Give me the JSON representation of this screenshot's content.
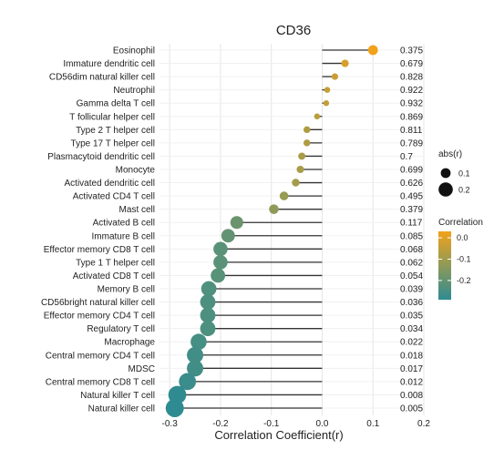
{
  "chart_data": {
    "type": "lollipop",
    "title": "CD36",
    "xlabel": "Correlation Coefficient(r)",
    "xlim": [
      -0.32,
      0.2
    ],
    "xticks": [
      -0.3,
      -0.2,
      -0.1,
      0.0,
      0.1,
      0.2
    ],
    "xtick_labels": [
      "-0.3",
      "-0.2",
      "-0.1",
      "0.0",
      "0.1",
      "0.2"
    ],
    "grid": true,
    "size_legend": {
      "title": "abs(r)",
      "entries": [
        {
          "label": "0.1",
          "value": 0.1
        },
        {
          "label": "0.2",
          "value": 0.2
        }
      ]
    },
    "color_legend": {
      "title": "Correlation",
      "ticks": [
        {
          "label": "0.0",
          "value": 0.0
        },
        {
          "label": "-0.1",
          "value": -0.1
        },
        {
          "label": "-0.2",
          "value": -0.2
        }
      ],
      "low_color": "#2e8b92",
      "high_color": "#f2a11a"
    },
    "categories": [
      "Eosinophil",
      "Immature dendritic cell",
      "CD56dim natural killer cell",
      "Neutrophil",
      "Gamma delta T cell",
      "T follicular helper cell",
      "Type 2 T helper cell",
      "Type 17 T helper cell",
      "Plasmacytoid dendritic cell",
      "Monocyte",
      "Activated dendritic cell",
      "Activated CD4 T cell",
      "Mast cell",
      "Activated B cell",
      "Immature  B cell",
      "Effector memory CD8 T cell",
      "Type 1 T helper cell",
      "Activated CD8 T cell",
      "Memory B cell",
      "CD56bright natural killer cell",
      "Effector memory CD4 T cell",
      "Regulatory T cell",
      "Macrophage",
      "Central memory CD4 T cell",
      "MDSC",
      "Central memory CD8 T cell",
      "Natural killer T cell",
      "Natural killer cell"
    ],
    "values": [
      0.1,
      0.045,
      0.025,
      0.01,
      0.008,
      -0.01,
      -0.03,
      -0.03,
      -0.04,
      -0.043,
      -0.052,
      -0.075,
      -0.095,
      -0.168,
      -0.185,
      -0.2,
      -0.2,
      -0.205,
      -0.223,
      -0.225,
      -0.225,
      -0.225,
      -0.243,
      -0.25,
      -0.25,
      -0.265,
      -0.285,
      -0.29
    ],
    "pvalues": [
      "0.375",
      "0.679",
      "0.828",
      "0.922",
      "0.932",
      "0.869",
      "0.811",
      "0.789",
      "0.7",
      "0.699",
      "0.626",
      "0.495",
      "0.379",
      "0.117",
      "0.085",
      "0.068",
      "0.062",
      "0.054",
      "0.039",
      "0.036",
      "0.035",
      "0.034",
      "0.022",
      "0.018",
      "0.017",
      "0.012",
      "0.008",
      "0.005"
    ]
  }
}
